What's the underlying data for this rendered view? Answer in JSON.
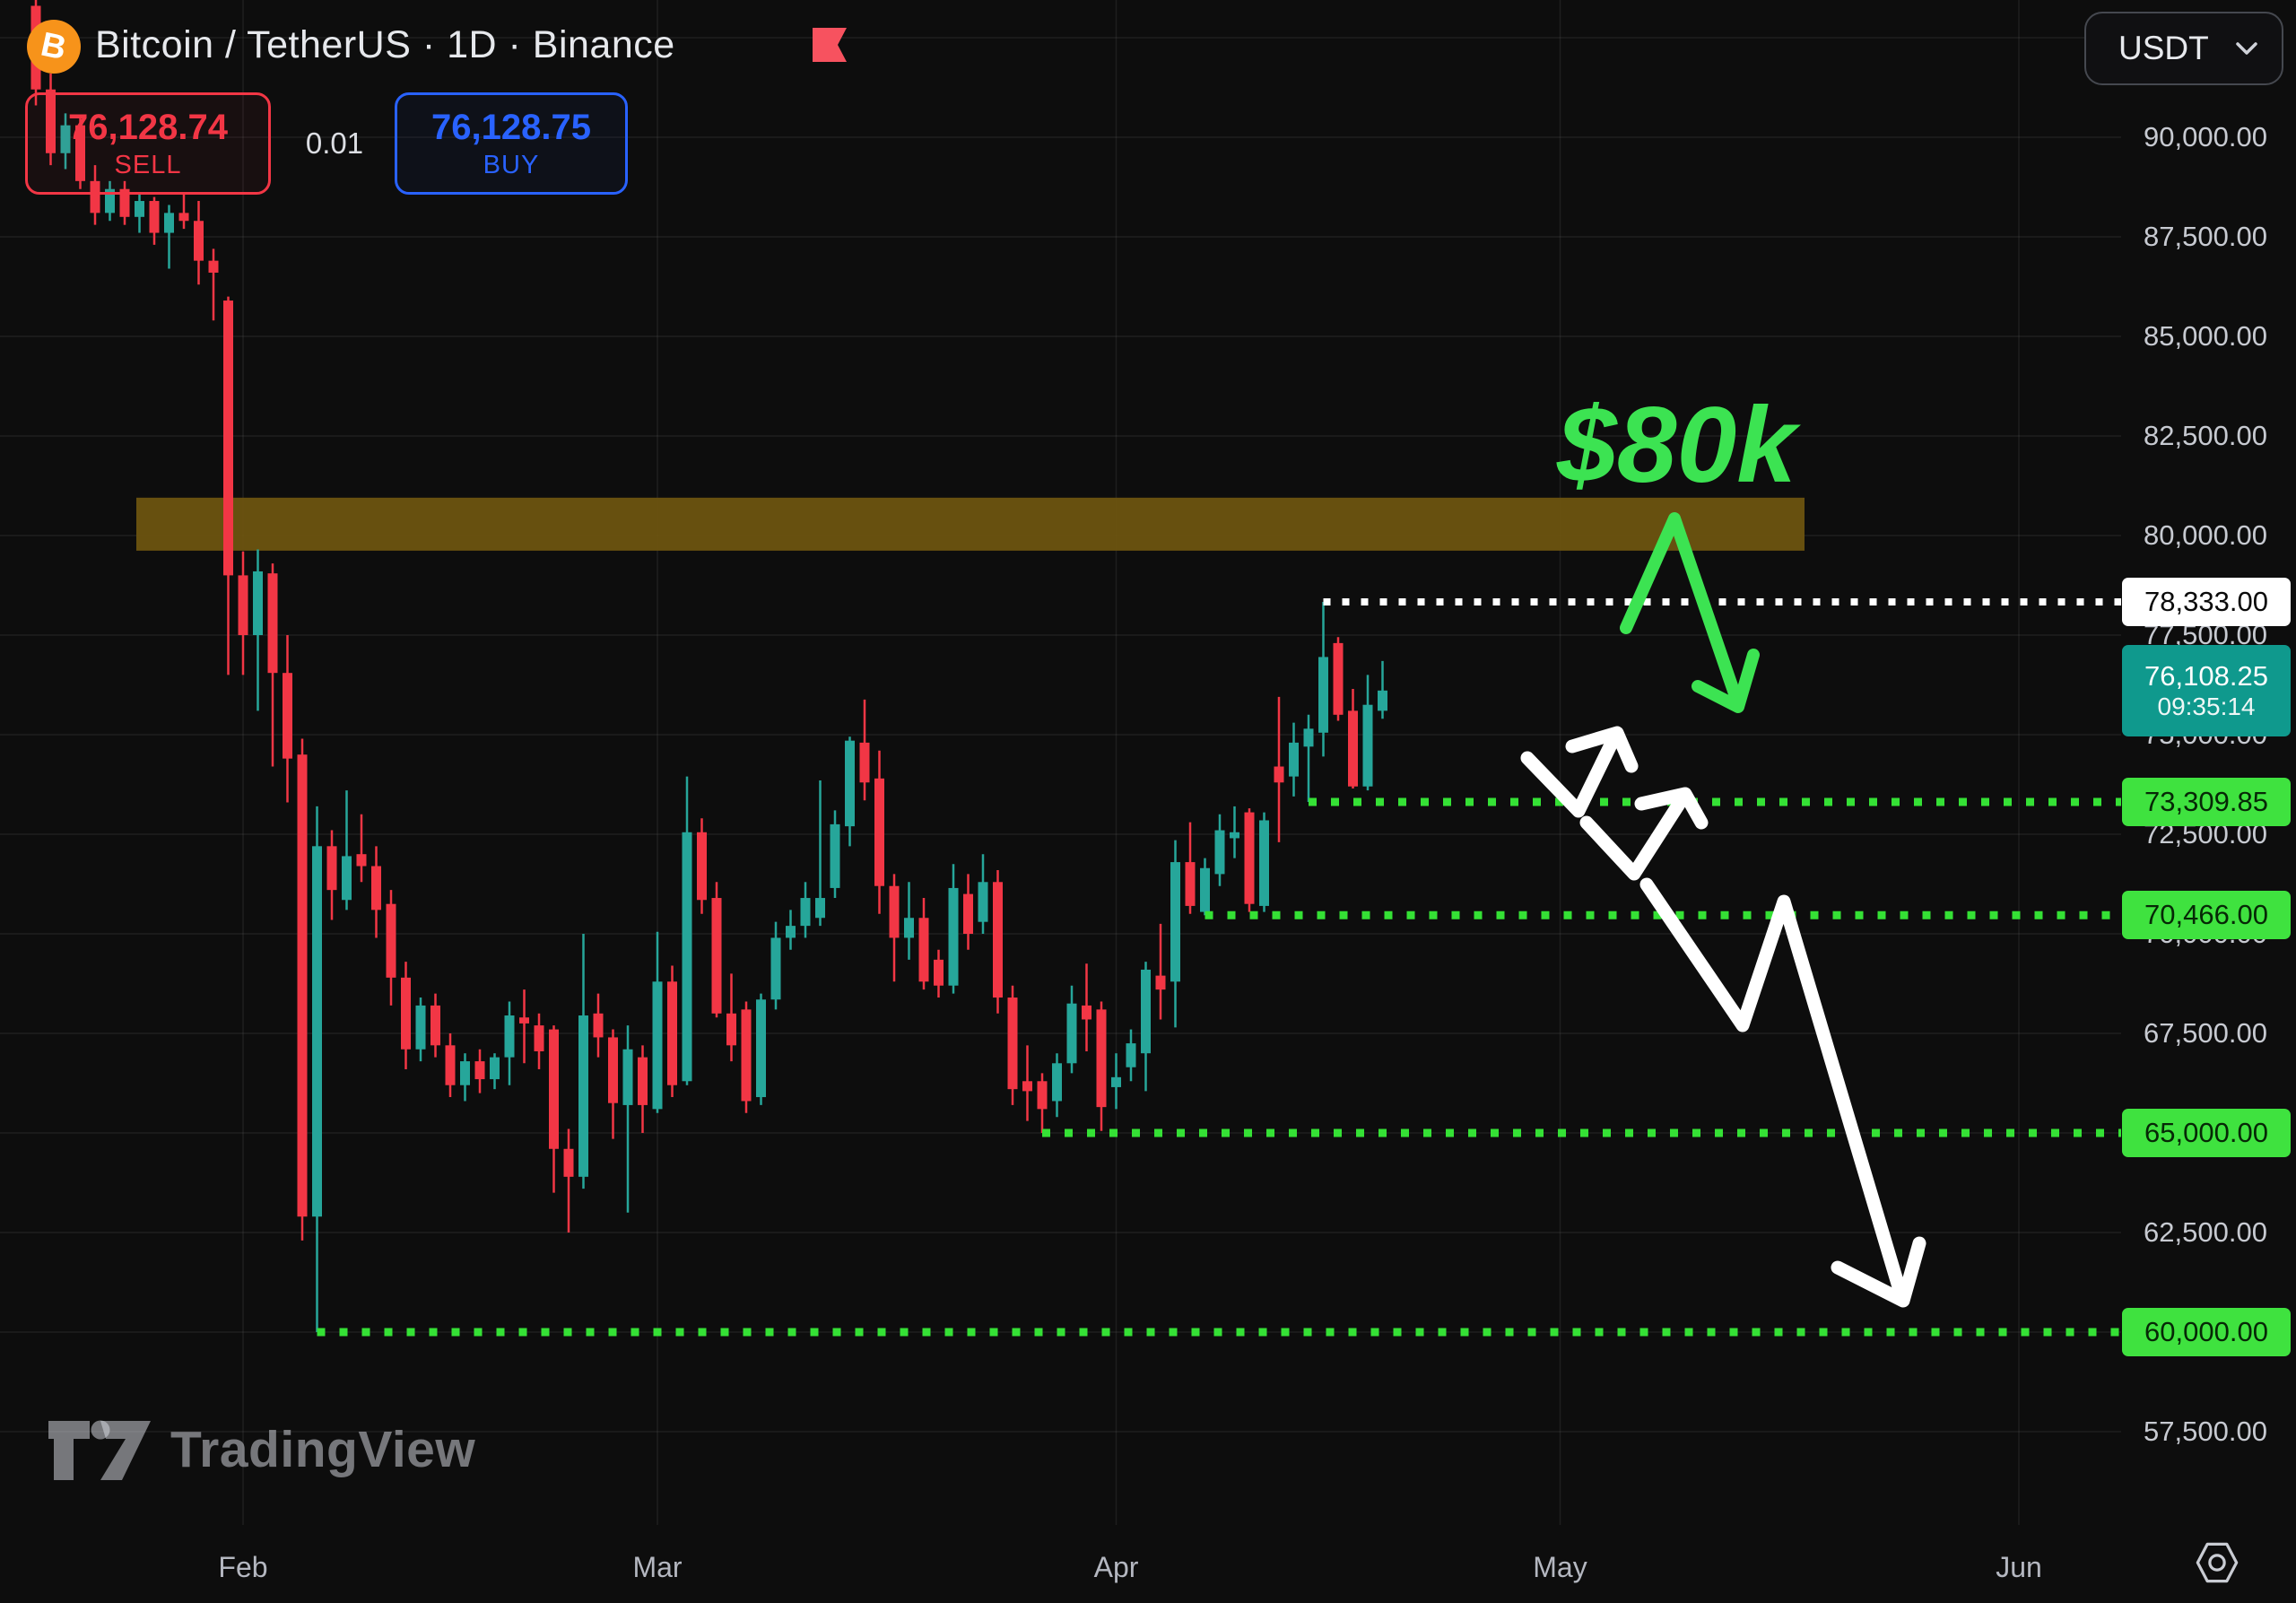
{
  "header": {
    "symbol_title": "Bitcoin / TetherUS · 1D · Binance",
    "sell_button": {
      "price": "76,128.74",
      "label": "SELL",
      "color": "#f23645"
    },
    "spread": "0.01",
    "buy_button": {
      "price": "76,128.75",
      "label": "BUY",
      "color": "#2962ff"
    },
    "currency_selector": {
      "value": "USDT"
    }
  },
  "watermark": {
    "text": "TradingView"
  },
  "time_axis": {
    "months": [
      {
        "label": "Feb",
        "index": 14
      },
      {
        "label": "Mar",
        "index": 42
      },
      {
        "label": "Apr",
        "index": 73
      },
      {
        "label": "May",
        "index": 103
      },
      {
        "label": "Jun",
        "index": 134
      }
    ]
  },
  "price_axis": {
    "ticks": [
      {
        "label": "90,000.00",
        "price": 90000
      },
      {
        "label": "87,500.00",
        "price": 87500
      },
      {
        "label": "85,000.00",
        "price": 85000
      },
      {
        "label": "82,500.00",
        "price": 82500
      },
      {
        "label": "80,000.00",
        "price": 80000
      },
      {
        "label": "77,500.00",
        "price": 77500
      },
      {
        "label": "75,000.00",
        "price": 75000
      },
      {
        "label": "72,500.00",
        "price": 72500
      },
      {
        "label": "70,000.00",
        "price": 70000
      },
      {
        "label": "67,500.00",
        "price": 67500
      },
      {
        "label": "65,000.00",
        "price": 65000
      },
      {
        "label": "62,500.00",
        "price": 62500
      },
      {
        "label": "60,000.00",
        "price": 60000
      },
      {
        "label": "57,500.00",
        "price": 57500
      }
    ],
    "chips": [
      {
        "name": "level-chip-78333",
        "text": "78,333.00",
        "price": 78333,
        "h": 54,
        "bg": "#ffffff",
        "fg": "#0a0a0a"
      },
      {
        "name": "current-price-chip",
        "text": "76,108.25",
        "sub": "09:35:14",
        "price": 76108.25,
        "h": 102,
        "bg": "#0f998d",
        "fg": "#ffffff"
      },
      {
        "name": "level-chip-73309",
        "text": "73,309.85",
        "price": 73309.85,
        "h": 54,
        "bg": "#3fe23f",
        "fg": "#062806"
      },
      {
        "name": "level-chip-70466",
        "text": "70,466.00",
        "price": 70466,
        "h": 54,
        "bg": "#3fe23f",
        "fg": "#062806"
      },
      {
        "name": "level-chip-65000",
        "text": "65,000.00",
        "price": 65000,
        "h": 54,
        "bg": "#3fe23f",
        "fg": "#062806"
      },
      {
        "name": "level-chip-60000",
        "text": "60,000.00",
        "price": 60000,
        "h": 54,
        "bg": "#3fe23f",
        "fg": "#062806"
      }
    ]
  },
  "chart_data": {
    "type": "candlestick",
    "title": "Bitcoin / TetherUS",
    "interval": "1D",
    "exchange": "Binance",
    "unit": "USDT, candle values in thousands [open, high, low, close], daily Jan 18 - Apr 19",
    "x0": 40,
    "step": 16.5,
    "candle_w": 11,
    "y_anchors": {
      "p1": 90000,
      "y1": 153,
      "p2": 60000,
      "y2": 1485
    },
    "ylim": [
      56000,
      93500
    ],
    "grid": {
      "h_min": 57500,
      "h_max": 92500,
      "h_step": 2500,
      "color": "rgba(255,255,255,0.07)"
    },
    "colors": {
      "up": "#26a69a",
      "down": "#f23645",
      "bg": "#0d0d0d"
    },
    "supply_zone": {
      "x1": 152,
      "x2": 2012,
      "price_top": 80950,
      "price_bottom": 79620,
      "color": "#6f560f",
      "opacity": 0.92,
      "label": "$80k supply zone"
    },
    "candles": [
      [
        93.3,
        93.45,
        90.8,
        91.2
      ],
      [
        91.2,
        91.6,
        89.3,
        89.6
      ],
      [
        89.6,
        90.6,
        89.2,
        90.3
      ],
      [
        90.3,
        90.5,
        88.7,
        88.9
      ],
      [
        88.9,
        89.3,
        87.8,
        88.1
      ],
      [
        88.1,
        88.9,
        87.9,
        88.7
      ],
      [
        88.7,
        88.9,
        87.8,
        88.0
      ],
      [
        88.0,
        88.6,
        87.6,
        88.4
      ],
      [
        88.4,
        88.5,
        87.3,
        87.6
      ],
      [
        87.6,
        88.3,
        86.7,
        88.1
      ],
      [
        88.1,
        88.6,
        87.7,
        87.9
      ],
      [
        87.9,
        88.4,
        86.3,
        86.9
      ],
      [
        86.9,
        87.2,
        85.4,
        86.6
      ],
      [
        85.9,
        86.0,
        76.5,
        79.0
      ],
      [
        79.0,
        79.6,
        76.5,
        77.5
      ],
      [
        77.5,
        79.65,
        75.6,
        79.1
      ],
      [
        79.05,
        79.3,
        74.2,
        76.55
      ],
      [
        76.55,
        77.5,
        73.3,
        74.4
      ],
      [
        74.5,
        74.9,
        62.3,
        62.9
      ],
      [
        62.9,
        73.2,
        60.0,
        72.2
      ],
      [
        72.2,
        72.6,
        70.35,
        71.1
      ],
      [
        70.85,
        73.6,
        70.6,
        71.95
      ],
      [
        72.0,
        73.0,
        71.3,
        71.7
      ],
      [
        71.7,
        72.2,
        69.9,
        70.6
      ],
      [
        70.75,
        71.1,
        68.2,
        68.9
      ],
      [
        68.9,
        69.3,
        66.6,
        67.1
      ],
      [
        67.1,
        68.4,
        66.8,
        68.2
      ],
      [
        68.2,
        68.5,
        66.9,
        67.2
      ],
      [
        67.2,
        67.5,
        65.9,
        66.2
      ],
      [
        66.2,
        67.0,
        65.8,
        66.8
      ],
      [
        66.8,
        67.1,
        66.0,
        66.35
      ],
      [
        66.35,
        67.0,
        66.1,
        66.9
      ],
      [
        66.9,
        68.3,
        66.2,
        67.95
      ],
      [
        67.9,
        68.6,
        66.75,
        67.75
      ],
      [
        67.7,
        68.0,
        66.6,
        67.05
      ],
      [
        67.6,
        67.7,
        63.5,
        64.6
      ],
      [
        64.6,
        65.1,
        62.5,
        63.9
      ],
      [
        63.9,
        70.0,
        63.6,
        67.95
      ],
      [
        68.0,
        68.5,
        66.9,
        67.4
      ],
      [
        67.4,
        67.6,
        64.85,
        65.75
      ],
      [
        65.7,
        67.7,
        63.0,
        67.1
      ],
      [
        66.9,
        67.2,
        65.0,
        65.7
      ],
      [
        65.6,
        70.05,
        65.5,
        68.8
      ],
      [
        68.8,
        69.2,
        65.9,
        66.2
      ],
      [
        66.3,
        73.95,
        66.2,
        72.55
      ],
      [
        72.55,
        72.9,
        70.5,
        70.85
      ],
      [
        70.9,
        71.3,
        67.9,
        68.0
      ],
      [
        68.0,
        69.0,
        66.8,
        67.2
      ],
      [
        68.1,
        68.3,
        65.5,
        65.8
      ],
      [
        65.9,
        68.5,
        65.7,
        68.35
      ],
      [
        68.35,
        70.3,
        68.1,
        69.9
      ],
      [
        69.9,
        70.6,
        69.6,
        70.2
      ],
      [
        70.2,
        71.3,
        69.9,
        70.9
      ],
      [
        70.4,
        73.85,
        70.2,
        70.9
      ],
      [
        71.15,
        73.1,
        70.9,
        72.75
      ],
      [
        72.7,
        74.95,
        72.2,
        74.85
      ],
      [
        74.8,
        75.88,
        73.35,
        73.8
      ],
      [
        73.9,
        74.6,
        70.5,
        71.2
      ],
      [
        71.2,
        71.5,
        68.8,
        69.9
      ],
      [
        69.9,
        71.3,
        69.35,
        70.4
      ],
      [
        70.4,
        70.9,
        68.6,
        68.8
      ],
      [
        69.35,
        69.6,
        68.4,
        68.7
      ],
      [
        68.7,
        71.75,
        68.5,
        71.15
      ],
      [
        71.0,
        71.5,
        69.6,
        70.0
      ],
      [
        70.3,
        72.0,
        70.0,
        71.3
      ],
      [
        71.3,
        71.6,
        68.0,
        68.4
      ],
      [
        68.4,
        68.7,
        65.7,
        66.1
      ],
      [
        66.3,
        67.2,
        65.3,
        66.05
      ],
      [
        66.3,
        66.5,
        65.0,
        65.6
      ],
      [
        65.8,
        67.0,
        65.4,
        66.75
      ],
      [
        66.75,
        68.7,
        66.5,
        68.25
      ],
      [
        68.2,
        69.25,
        67.05,
        67.85
      ],
      [
        68.1,
        68.3,
        65.05,
        65.65
      ],
      [
        66.15,
        67.0,
        65.6,
        66.4
      ],
      [
        66.65,
        67.6,
        66.3,
        67.25
      ],
      [
        67.0,
        69.3,
        66.05,
        69.1
      ],
      [
        68.95,
        70.25,
        67.85,
        68.6
      ],
      [
        68.8,
        72.35,
        67.65,
        71.8
      ],
      [
        71.8,
        72.8,
        70.5,
        70.7
      ],
      [
        70.55,
        71.9,
        70.466,
        71.65
      ],
      [
        71.5,
        73.0,
        71.2,
        72.6
      ],
      [
        72.4,
        73.2,
        71.9,
        72.55
      ],
      [
        73.05,
        73.15,
        70.55,
        70.75
      ],
      [
        70.7,
        73.05,
        70.55,
        72.85
      ],
      [
        74.2,
        75.95,
        72.3,
        73.8
      ],
      [
        73.95,
        75.3,
        73.45,
        74.8
      ],
      [
        74.7,
        75.5,
        73.31,
        75.15
      ],
      [
        75.05,
        78.333,
        74.45,
        76.95
      ],
      [
        77.3,
        77.45,
        75.35,
        75.5
      ],
      [
        75.6,
        76.15,
        73.65,
        73.7
      ],
      [
        73.7,
        76.5,
        73.6,
        75.75
      ],
      [
        75.6,
        76.85,
        75.4,
        76.108
      ]
    ],
    "levels": [
      {
        "price": 78333,
        "start_index": 87,
        "color": "#ffffff",
        "dash": "8 13",
        "width": 8,
        "label": "78,333.00"
      },
      {
        "price": 73309.85,
        "start_index": 86,
        "color": "#35e135",
        "dash": "9 16",
        "width": 9,
        "label": "73,309.85"
      },
      {
        "price": 70466,
        "start_index": 79,
        "color": "#35e135",
        "dash": "9 16",
        "width": 9,
        "label": "70,466.00"
      },
      {
        "price": 65000,
        "start_index": 68,
        "color": "#35e135",
        "dash": "9 16",
        "width": 9,
        "label": "65,000.00"
      },
      {
        "price": 60000,
        "start_index": 19,
        "color": "#35e135",
        "dash": "9 16",
        "width": 9,
        "label": "60,000.00"
      }
    ],
    "annotations": {
      "target_text": {
        "text": "$80k",
        "x": 1736,
        "y": 537,
        "size": 120,
        "color": "#3ce352"
      },
      "green_arrow": {
        "points": [
          [
            1813,
            700
          ],
          [
            1867,
            578
          ],
          [
            1938,
            785
          ]
        ],
        "barb": [
          [
            1893,
            765
          ],
          [
            1938,
            788
          ],
          [
            1955,
            730
          ]
        ],
        "color": "#3ce352",
        "width": 14
      },
      "white_arrow_style": {
        "color": "#ffffff",
        "width": 15
      },
      "white_arrows": [
        {
          "points": [
            [
              1703,
              845
            ],
            [
              1760,
              904
            ],
            [
              1801,
              820
            ]
          ],
          "barb": [
            [
              1753,
              832
            ],
            [
              1803,
              817
            ],
            [
              1819,
              854
            ]
          ]
        },
        {
          "points": [
            [
              1769,
              917
            ],
            [
              1822,
              974
            ],
            [
              1878,
              887
            ]
          ],
          "barb": [
            [
              1830,
              896
            ],
            [
              1879,
              885
            ],
            [
              1897,
              917
            ]
          ]
        },
        {
          "points": [
            [
              1836,
              986
            ],
            [
              1943,
              1143
            ],
            [
              1989,
              1005
            ],
            [
              2121,
              1448
            ]
          ],
          "barb": [
            [
              2049,
              1413
            ],
            [
              2122,
              1450
            ],
            [
              2140,
              1386
            ]
          ]
        }
      ]
    }
  }
}
